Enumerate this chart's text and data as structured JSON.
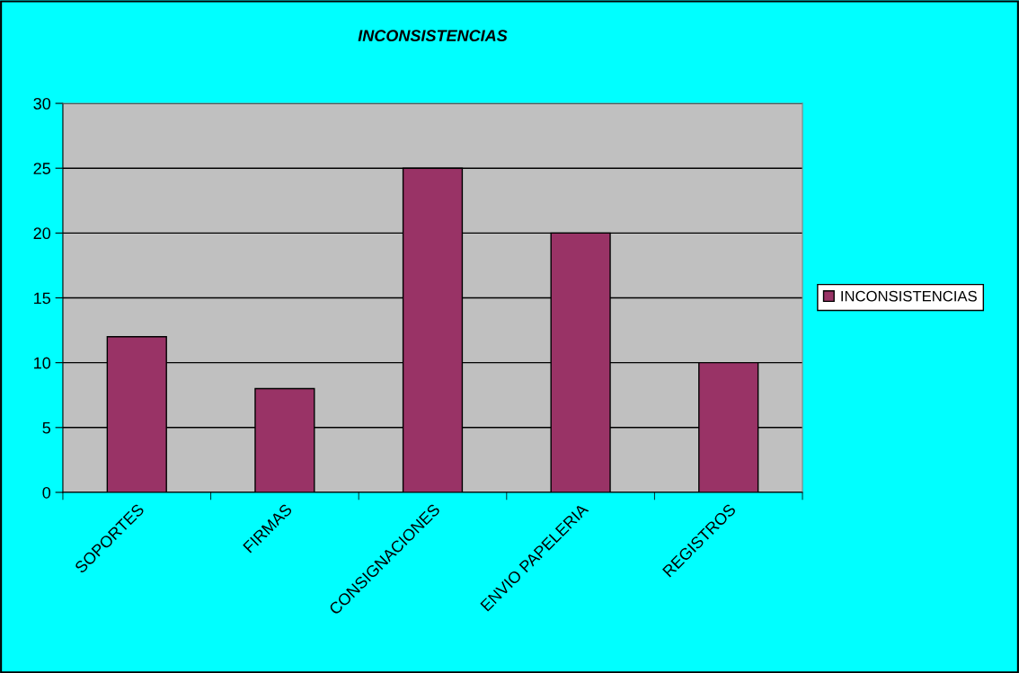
{
  "chart_data": {
    "type": "bar",
    "title": "INCONSISTENCIAS",
    "categories": [
      "SOPORTES",
      "FIRMAS",
      "CONSIGNACIONES",
      "ENVIO PAPELERIA",
      "REGISTROS"
    ],
    "series": [
      {
        "name": "INCONSISTENCIAS",
        "color": "#993366",
        "values": [
          12,
          8,
          25,
          20,
          10
        ]
      }
    ],
    "ylim": [
      0,
      30
    ],
    "yticks": [
      0,
      5,
      10,
      15,
      20,
      25,
      30
    ],
    "grid": "y",
    "legend": "right"
  }
}
